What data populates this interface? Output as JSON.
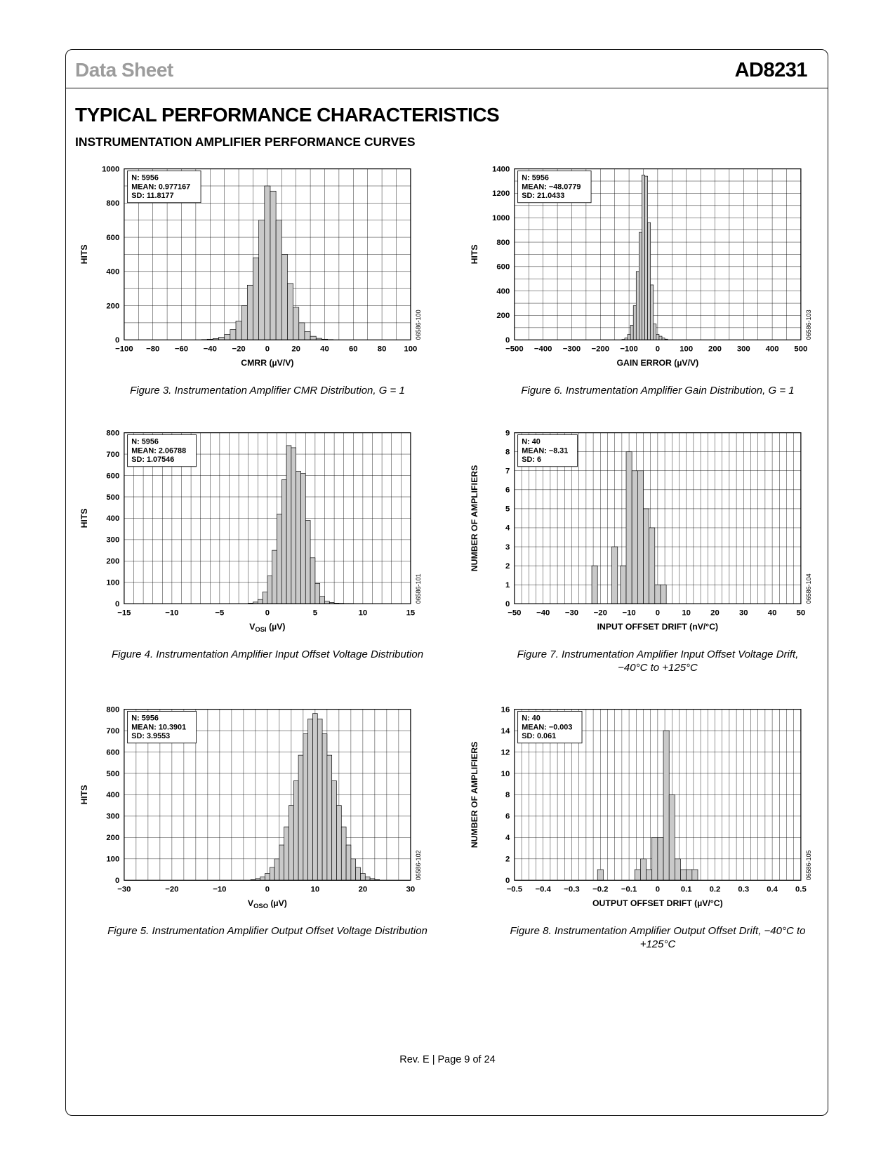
{
  "header": {
    "doc_type": "Data Sheet",
    "part_number": "AD8231"
  },
  "titles": {
    "main": "TYPICAL PERFORMANCE CHARACTERISTICS",
    "section": "INSTRUMENTATION AMPLIFIER PERFORMANCE CURVES"
  },
  "footer": {
    "text": "Rev. E | Page 9 of 24"
  },
  "chart_data": [
    {
      "type": "bar",
      "figure": "Figure 3",
      "caption_lines": [
        "Figure 3. Instrumentation Amplifier CMR Distribution, G = 1"
      ],
      "code": "06586-100",
      "stats": [
        "N: 5956",
        "MEAN: 0.977167",
        "SD: 11.8177"
      ],
      "xlabel": "CMRR (µV/V)",
      "ylabel": "HITS",
      "xmin": -100,
      "xmax": 100,
      "xgrid": 10,
      "ymin": 0,
      "ymax": 1000,
      "ygrid": 100,
      "xticks": [
        [
          -100,
          "−100"
        ],
        [
          -80,
          "−80"
        ],
        [
          -60,
          "−60"
        ],
        [
          -40,
          "−40"
        ],
        [
          -20,
          "−20"
        ],
        [
          0,
          "0"
        ],
        [
          20,
          "20"
        ],
        [
          40,
          "40"
        ],
        [
          60,
          "60"
        ],
        [
          80,
          "80"
        ],
        [
          100,
          "100"
        ]
      ],
      "yticks": [
        [
          0,
          "0"
        ],
        [
          200,
          "200"
        ],
        [
          400,
          "400"
        ],
        [
          600,
          "600"
        ],
        [
          800,
          "800"
        ],
        [
          1000,
          "1000"
        ]
      ],
      "bin": 4,
      "bars": [
        [
          -46,
          2
        ],
        [
          -42,
          4
        ],
        [
          -38,
          8
        ],
        [
          -34,
          16
        ],
        [
          -30,
          32
        ],
        [
          -26,
          60
        ],
        [
          -22,
          110
        ],
        [
          -18,
          200
        ],
        [
          -14,
          320
        ],
        [
          -10,
          480
        ],
        [
          -6,
          700
        ],
        [
          -2,
          900
        ],
        [
          2,
          870
        ],
        [
          6,
          700
        ],
        [
          10,
          500
        ],
        [
          14,
          330
        ],
        [
          18,
          190
        ],
        [
          22,
          100
        ],
        [
          26,
          48
        ],
        [
          30,
          21
        ],
        [
          34,
          9
        ],
        [
          38,
          4
        ],
        [
          42,
          2
        ]
      ]
    },
    {
      "type": "bar",
      "figure": "Figure 6",
      "caption_lines": [
        "Figure 6. Instrumentation Amplifier Gain Distribution, G = 1"
      ],
      "code": "06586-103",
      "stats": [
        "N: 5956",
        "MEAN: −48.0779",
        "SD: 21.0433"
      ],
      "xlabel": "GAIN ERROR (µV/V)",
      "ylabel": "HITS",
      "xmin": -500,
      "xmax": 500,
      "xgrid": 50,
      "ymin": 0,
      "ymax": 1400,
      "ygrid": 100,
      "xticks": [
        [
          -500,
          "−500"
        ],
        [
          -400,
          "−400"
        ],
        [
          -300,
          "−300"
        ],
        [
          -200,
          "−200"
        ],
        [
          -100,
          "−100"
        ],
        [
          0,
          "0"
        ],
        [
          100,
          "100"
        ],
        [
          200,
          "200"
        ],
        [
          300,
          "300"
        ],
        [
          400,
          "400"
        ],
        [
          500,
          "500"
        ]
      ],
      "yticks": [
        [
          0,
          "0"
        ],
        [
          200,
          "200"
        ],
        [
          400,
          "400"
        ],
        [
          600,
          "600"
        ],
        [
          800,
          "800"
        ],
        [
          1000,
          "1000"
        ],
        [
          1200,
          "1200"
        ],
        [
          1400,
          "1400"
        ]
      ],
      "bin": 10,
      "bars": [
        [
          -125,
          4
        ],
        [
          -115,
          15
        ],
        [
          -105,
          45
        ],
        [
          -95,
          120
        ],
        [
          -85,
          280
        ],
        [
          -75,
          560
        ],
        [
          -65,
          880
        ],
        [
          -55,
          1350
        ],
        [
          -45,
          1340
        ],
        [
          -35,
          960
        ],
        [
          -25,
          450
        ],
        [
          -15,
          130
        ],
        [
          -5,
          45
        ],
        [
          5,
          30
        ],
        [
          15,
          15
        ],
        [
          25,
          6
        ]
      ]
    },
    {
      "type": "bar",
      "figure": "Figure 4",
      "caption_lines": [
        "Figure 4. Instrumentation Amplifier Input Offset Voltage Distribution"
      ],
      "code": "06586-101",
      "stats": [
        "N: 5956",
        "MEAN: 2.06788",
        "SD: 1.07546"
      ],
      "xlabel_main": "V",
      "xlabel_sub": "OSI",
      "xlabel_rest": " (µV)",
      "ylabel": "HITS",
      "xmin": -15,
      "xmax": 15,
      "xgrid": 1,
      "ymin": 0,
      "ymax": 800,
      "ygrid": 100,
      "xticks": [
        [
          -15,
          "−15"
        ],
        [
          -10,
          "−10"
        ],
        [
          -5,
          "−5"
        ],
        [
          0,
          "0"
        ],
        [
          5,
          "5"
        ],
        [
          10,
          "10"
        ],
        [
          15,
          "15"
        ]
      ],
      "yticks": [
        [
          0,
          "0"
        ],
        [
          100,
          "100"
        ],
        [
          200,
          "200"
        ],
        [
          300,
          "300"
        ],
        [
          400,
          "400"
        ],
        [
          500,
          "500"
        ],
        [
          600,
          "600"
        ],
        [
          700,
          "700"
        ],
        [
          800,
          "800"
        ]
      ],
      "bin": 0.5,
      "bars": [
        [
          -2,
          3
        ],
        [
          -1.5,
          8
        ],
        [
          -1,
          20
        ],
        [
          -0.5,
          55
        ],
        [
          0,
          130
        ],
        [
          0.5,
          250
        ],
        [
          1,
          420
        ],
        [
          1.5,
          580
        ],
        [
          2,
          740
        ],
        [
          2.5,
          730
        ],
        [
          3,
          620
        ],
        [
          3.5,
          610
        ],
        [
          4,
          390
        ],
        [
          4.5,
          215
        ],
        [
          5,
          95
        ],
        [
          5.5,
          35
        ],
        [
          6,
          12
        ],
        [
          6.5,
          6
        ],
        [
          7,
          3
        ],
        [
          7.5,
          2
        ],
        [
          8,
          1
        ],
        [
          8.5,
          1
        ]
      ]
    },
    {
      "type": "bar",
      "figure": "Figure 7",
      "caption_lines": [
        "Figure 7. Instrumentation Amplifier Input Offset Voltage Drift,",
        "−40°C to +125°C"
      ],
      "code": "06586-104",
      "stats": [
        "N: 40",
        "MEAN: −8.31",
        "SD: 6"
      ],
      "xlabel": "INPUT OFFSET DRIFT (nV/°C)",
      "ylabel": "NUMBER OF AMPLIFIERS",
      "xmin": -50,
      "xmax": 50,
      "xgrid": 2.5,
      "ymin": 0,
      "ymax": 9,
      "ygrid": 1,
      "xticks": [
        [
          -50,
          "−50"
        ],
        [
          -40,
          "−40"
        ],
        [
          -30,
          "−30"
        ],
        [
          -20,
          "−20"
        ],
        [
          -10,
          "−10"
        ],
        [
          0,
          "0"
        ],
        [
          10,
          "10"
        ],
        [
          20,
          "20"
        ],
        [
          30,
          "30"
        ],
        [
          40,
          "40"
        ],
        [
          50,
          "50"
        ]
      ],
      "yticks": [
        [
          0,
          "0"
        ],
        [
          1,
          "1"
        ],
        [
          2,
          "2"
        ],
        [
          3,
          "3"
        ],
        [
          4,
          "4"
        ],
        [
          5,
          "5"
        ],
        [
          6,
          "6"
        ],
        [
          7,
          "7"
        ],
        [
          8,
          "8"
        ],
        [
          9,
          "9"
        ]
      ],
      "bin": 2,
      "bars": [
        [
          -23,
          2
        ],
        [
          -16,
          3
        ],
        [
          -13,
          2
        ],
        [
          -11,
          8
        ],
        [
          -9,
          7
        ],
        [
          -7,
          7
        ],
        [
          -5,
          5
        ],
        [
          -3,
          4
        ],
        [
          -1,
          1
        ],
        [
          1,
          1
        ]
      ]
    },
    {
      "type": "bar",
      "figure": "Figure 5",
      "caption_lines": [
        "Figure 5. Instrumentation Amplifier Output Offset Voltage Distribution"
      ],
      "code": "06586-102",
      "stats": [
        "N: 5956",
        "MEAN: 10.3901",
        "SD: 3.9553"
      ],
      "xlabel_main": "V",
      "xlabel_sub": "OSO",
      "xlabel_rest": " (µV)",
      "ylabel": "HITS",
      "xmin": -30,
      "xmax": 30,
      "xgrid": 2.5,
      "ymin": 0,
      "ymax": 800,
      "ygrid": 100,
      "xticks": [
        [
          -30,
          "−30"
        ],
        [
          -20,
          "−20"
        ],
        [
          -10,
          "−10"
        ],
        [
          0,
          "0"
        ],
        [
          10,
          "10"
        ],
        [
          20,
          "20"
        ],
        [
          30,
          "30"
        ]
      ],
      "yticks": [
        [
          0,
          "0"
        ],
        [
          100,
          "100"
        ],
        [
          200,
          "200"
        ],
        [
          300,
          "300"
        ],
        [
          400,
          "400"
        ],
        [
          500,
          "500"
        ],
        [
          600,
          "600"
        ],
        [
          700,
          "700"
        ],
        [
          800,
          "800"
        ]
      ],
      "bin": 1,
      "bars": [
        [
          -3.5,
          3
        ],
        [
          -2.5,
          8
        ],
        [
          -1.5,
          16
        ],
        [
          -0.5,
          32
        ],
        [
          0.5,
          60
        ],
        [
          1.5,
          100
        ],
        [
          2.5,
          165
        ],
        [
          3.5,
          250
        ],
        [
          4.5,
          350
        ],
        [
          5.5,
          465
        ],
        [
          6.5,
          585
        ],
        [
          7.5,
          685
        ],
        [
          8.5,
          755
        ],
        [
          9.5,
          780
        ],
        [
          10.5,
          755
        ],
        [
          11.5,
          685
        ],
        [
          12.5,
          585
        ],
        [
          13.5,
          465
        ],
        [
          14.5,
          350
        ],
        [
          15.5,
          250
        ],
        [
          16.5,
          165
        ],
        [
          17.5,
          100
        ],
        [
          18.5,
          60
        ],
        [
          19.5,
          32
        ],
        [
          20.5,
          16
        ],
        [
          21.5,
          8
        ],
        [
          22.5,
          3
        ]
      ]
    },
    {
      "type": "bar",
      "figure": "Figure 8",
      "caption_lines": [
        "Figure 8. Instrumentation Amplifier Output Offset Drift, −40°C to +125°C"
      ],
      "code": "06586-105",
      "stats": [
        "N: 40",
        "MEAN: −0.003",
        "SD: 0.061"
      ],
      "xlabel": "OUTPUT OFFSET DRIFT (µV/°C)",
      "ylabel": "NUMBER OF AMPLIFIERS",
      "xmin": -0.5,
      "xmax": 0.5,
      "xgrid": 0.025,
      "ymin": 0,
      "ymax": 16,
      "ygrid": 2,
      "xticks": [
        [
          -0.5,
          "−0.5"
        ],
        [
          -0.4,
          "−0.4"
        ],
        [
          -0.3,
          "−0.3"
        ],
        [
          -0.2,
          "−0.2"
        ],
        [
          -0.1,
          "−0.1"
        ],
        [
          0,
          "0"
        ],
        [
          0.1,
          "0.1"
        ],
        [
          0.2,
          "0.2"
        ],
        [
          0.3,
          "0.3"
        ],
        [
          0.4,
          "0.4"
        ],
        [
          0.5,
          "0.5"
        ]
      ],
      "yticks": [
        [
          0,
          "0"
        ],
        [
          2,
          "2"
        ],
        [
          4,
          "4"
        ],
        [
          6,
          "6"
        ],
        [
          8,
          "8"
        ],
        [
          10,
          "10"
        ],
        [
          12,
          "12"
        ],
        [
          14,
          "14"
        ],
        [
          16,
          "16"
        ]
      ],
      "bin": 0.02,
      "bars": [
        [
          -0.21,
          1
        ],
        [
          -0.08,
          1
        ],
        [
          -0.06,
          2
        ],
        [
          -0.04,
          1
        ],
        [
          -0.02,
          4
        ],
        [
          0,
          4
        ],
        [
          0.02,
          14
        ],
        [
          0.04,
          8
        ],
        [
          0.06,
          2
        ],
        [
          0.08,
          1
        ],
        [
          0.1,
          1
        ],
        [
          0.12,
          1
        ]
      ]
    }
  ]
}
